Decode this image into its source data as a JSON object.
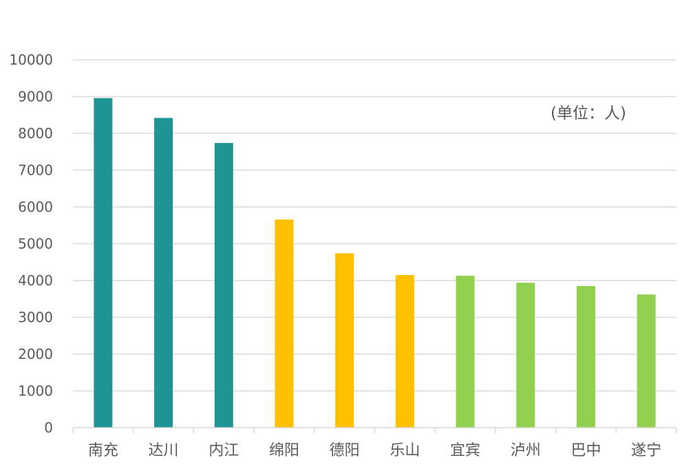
{
  "chart_data": {
    "type": "bar",
    "categories": [
      "南充",
      "达川",
      "内江",
      "绵阳",
      "德阳",
      "乐山",
      "宜宾",
      "泸州",
      "巴中",
      "遂宁"
    ],
    "values": [
      8960,
      8420,
      7740,
      5660,
      4740,
      4150,
      4130,
      3940,
      3850,
      3620
    ],
    "bar_colors": [
      "#1f9494",
      "#1f9494",
      "#1f9494",
      "#ffc000",
      "#ffc000",
      "#ffc000",
      "#92d050",
      "#92d050",
      "#92d050",
      "#92d050"
    ],
    "title": "",
    "xlabel": "",
    "ylabel": "",
    "ylim": [
      0,
      10000
    ],
    "yticks": [
      "0",
      "1000",
      "2000",
      "3000",
      "4000",
      "5000",
      "6000",
      "7000",
      "8000",
      "9000",
      "10000"
    ],
    "grid": true,
    "annotation": "(单位：人)",
    "gridline_color": "#d9d9d9",
    "label_color": "#595959"
  }
}
